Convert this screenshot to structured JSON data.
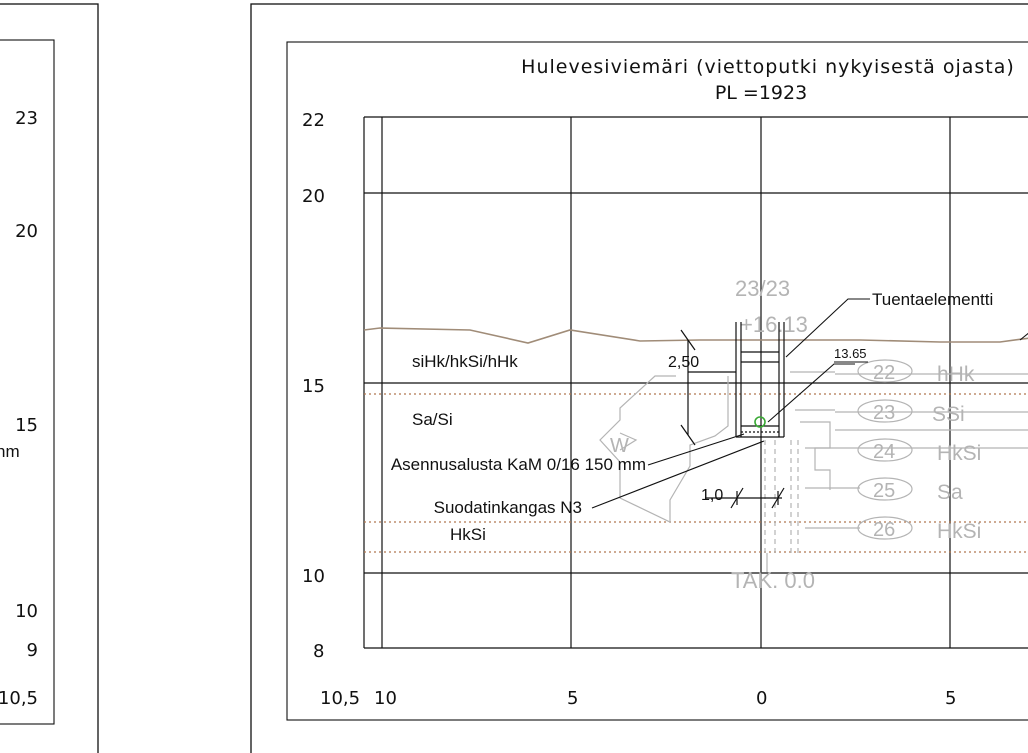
{
  "drawing": {
    "title_line1": "Hulevesiviemäri (viettoputki nykyisestä ojasta)",
    "title_line2": "PL =1923"
  },
  "left_panel": {
    "y_labels": [
      "23",
      "20",
      "15",
      "10",
      "9",
      "10,5"
    ],
    "cut_text": "nm"
  },
  "main_panel": {
    "y_labels": [
      "22",
      "20",
      "15",
      "10",
      "8"
    ],
    "x_labels": [
      "10,5",
      "10",
      "5",
      "0",
      "5"
    ],
    "annotations": {
      "tuentaelementti": "Tuentaelementti",
      "elevation_small": "13.65",
      "depth_dim": "2,50",
      "width_dim": "1,0",
      "asennusalusta": "Asennusalusta KaM 0/16 150 mm",
      "suodatinkangas": "Suodatinkangas N3"
    },
    "soil_layers": [
      "siHk/hkSi/hHk",
      "Sa/Si",
      "HkSi"
    ],
    "ghost": {
      "station": "23/23",
      "offset": "+16.13",
      "w_letter": "W",
      "tak": "TAK. 0.0",
      "samples": [
        {
          "num": "22",
          "soil": "hHk"
        },
        {
          "num": "23",
          "soil": "SSi"
        },
        {
          "num": "24",
          "soil": "HkSi"
        },
        {
          "num": "25",
          "soil": "Sa"
        },
        {
          "num": "26",
          "soil": "HkSi"
        }
      ]
    }
  },
  "colors": {
    "line": "#111111",
    "ghost": "#b4b4b4",
    "terrain": "#a08c78",
    "soil_dots": "#b07850",
    "pipe": "#3aaa35"
  }
}
